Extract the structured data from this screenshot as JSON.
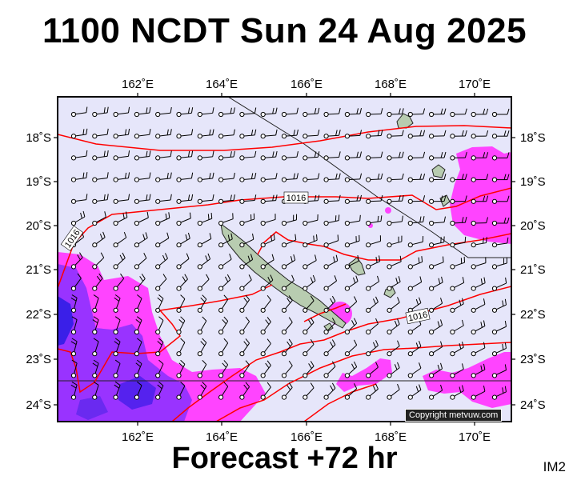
{
  "header": {
    "title": "1100 NCDT Sun 24 Aug 2025"
  },
  "footer": {
    "forecast": "Forecast +72 hr",
    "code": "IM2"
  },
  "credit": {
    "text": "Copyright metvuw.com"
  },
  "map": {
    "lon_ticks": [
      "162˚E",
      "164˚E",
      "166˚E",
      "168˚E",
      "170˚E"
    ],
    "lat_ticks": [
      "18˚S",
      "19˚S",
      "20˚S",
      "21˚S",
      "22˚S",
      "23˚S",
      "24˚S"
    ],
    "isobar_labels": [
      "1016",
      "1016",
      "1016"
    ],
    "colors": {
      "background": "#e6e6fa",
      "rain_light": "#ff66ff",
      "rain_heavy": "#9933ff",
      "rain_extreme": "#2222ee",
      "isobar": "#ff0000",
      "land": "#b8ccb0"
    }
  }
}
